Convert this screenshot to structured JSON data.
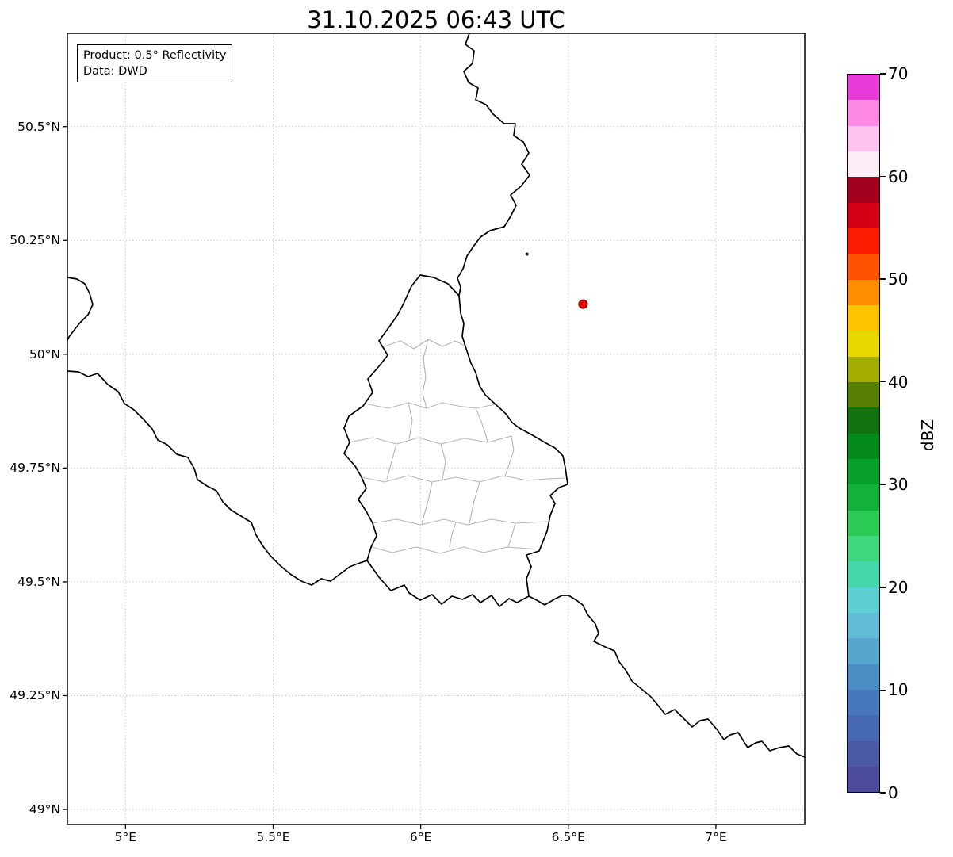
{
  "title": "31.10.2025 06:43 UTC",
  "annotation": {
    "product": "Product: 0.5° Reflectivity",
    "source": "Data: DWD"
  },
  "axes": {
    "lat_ticks": [
      {
        "label": "50.5°N",
        "lat": 50.5
      },
      {
        "label": "50.25°N",
        "lat": 50.25
      },
      {
        "label": "50°N",
        "lat": 50.0
      },
      {
        "label": "49.75°N",
        "lat": 49.75
      },
      {
        "label": "49.5°N",
        "lat": 49.5
      },
      {
        "label": "49.25°N",
        "lat": 49.25
      },
      {
        "label": "49°N",
        "lat": 49.0
      }
    ],
    "lon_ticks": [
      {
        "label": "5°E",
        "lon": 5.0
      },
      {
        "label": "5.5°E",
        "lon": 5.5
      },
      {
        "label": "6°E",
        "lon": 6.0
      },
      {
        "label": "6.5°E",
        "lon": 6.5
      },
      {
        "label": "7°E",
        "lon": 7.0
      }
    ]
  },
  "colorbar": {
    "label": "dBZ",
    "tick_values": [
      0,
      10,
      20,
      30,
      40,
      50,
      60,
      70
    ],
    "colors_bottom_to_top": [
      "#4d4b9d",
      "#4a5aa7",
      "#4769b1",
      "#4579bb",
      "#4b8ec5",
      "#57a6cf",
      "#62bcd8",
      "#5bcfd2",
      "#46d6ac",
      "#3fd67e",
      "#2ccb55",
      "#13b13a",
      "#07a02a",
      "#058a1c",
      "#117310",
      "#567e02",
      "#a3ad00",
      "#e8d800",
      "#ffc400",
      "#ff8f00",
      "#ff5200",
      "#fb1c00",
      "#d60016",
      "#a3001d",
      "#ffecf9",
      "#ffc3ef",
      "#ff8ae5",
      "#e93bd8"
    ]
  },
  "markers": {
    "radar_site": {
      "lon": 6.55,
      "lat": 50.11,
      "color": "#e50000"
    },
    "echo_pixel": {
      "lon": 6.36,
      "lat": 50.22,
      "color": "#1a1a1a"
    }
  }
}
